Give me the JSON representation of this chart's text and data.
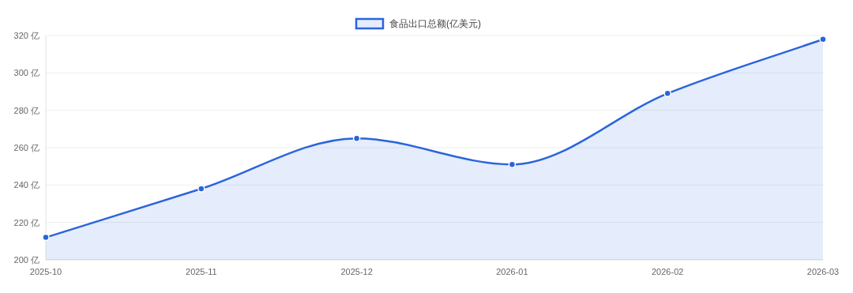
{
  "chart_data": {
    "type": "area",
    "categories": [
      "2025-10",
      "2025-11",
      "2025-12",
      "2026-01",
      "2026-02",
      "2026-03"
    ],
    "series": [
      {
        "name": "食品出口总额(亿美元)",
        "color": "#2a64dc",
        "values": [
          212,
          238,
          265,
          251,
          289,
          318
        ]
      }
    ],
    "ylim": [
      200,
      320
    ],
    "yticks": [
      {
        "value": 200,
        "label": "200 亿"
      },
      {
        "value": 220,
        "label": "220 亿"
      },
      {
        "value": 240,
        "label": "240 亿"
      },
      {
        "value": 260,
        "label": "260 亿"
      },
      {
        "value": 280,
        "label": "280 亿"
      },
      {
        "value": 300,
        "label": "300 亿"
      },
      {
        "value": 320,
        "label": "320 亿"
      }
    ],
    "grid": "y",
    "legend": "top",
    "marker": "circle",
    "line_style": "solid"
  }
}
